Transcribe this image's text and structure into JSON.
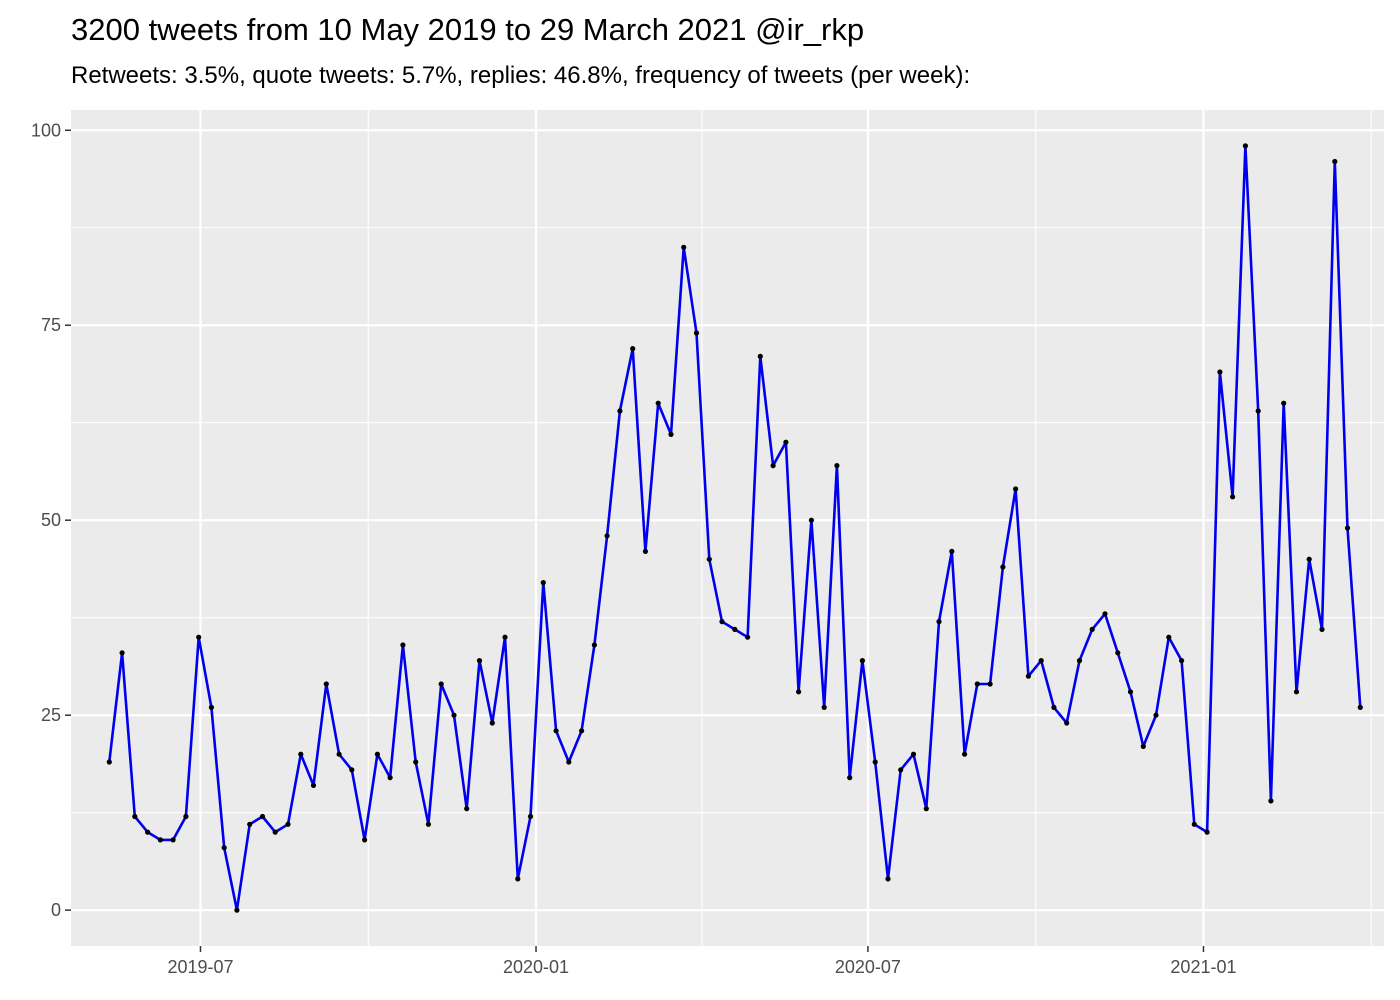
{
  "chart_data": {
    "type": "line",
    "title": "3200 tweets from 10 May 2019 to 29 March 2021 @ir_rkp",
    "subtitle": "Retweets: 3.5%, quote tweets: 5.7%, replies: 46.8%, frequency of tweets (per week):",
    "xlabel": "",
    "ylabel": "",
    "x_start": "2019-05-12",
    "x_step_days": 7,
    "xlim": [
      "2019-04-21",
      "2021-04-10"
    ],
    "x_ticks": [
      {
        "date": "2019-07-01",
        "label": "2019-07"
      },
      {
        "date": "2020-01-01",
        "label": "2020-01"
      },
      {
        "date": "2020-07-01",
        "label": "2020-07"
      },
      {
        "date": "2021-01-01",
        "label": "2021-01"
      }
    ],
    "y_ticks": [
      0,
      25,
      50,
      75,
      100
    ],
    "ylim": [
      -4.6,
      102.6
    ],
    "grid": true,
    "legend": "none",
    "colors": {
      "line": "#0000ee",
      "point": "#000000",
      "panel": "#ebebeb",
      "grid": "#ffffff"
    },
    "series": [
      {
        "values": [
          19,
          33,
          12,
          10,
          9,
          9,
          12,
          35,
          26,
          8,
          0,
          11,
          12,
          10,
          11,
          20,
          16,
          29,
          20,
          18,
          9,
          20,
          17,
          34,
          19,
          11,
          29,
          25,
          13,
          32,
          24,
          35,
          4,
          12,
          42,
          23,
          19,
          23,
          34,
          48,
          64,
          72,
          46,
          65,
          61,
          85,
          74,
          45,
          37,
          36,
          35,
          71,
          57,
          60,
          28,
          50,
          26,
          57,
          17,
          32,
          19,
          4,
          18,
          20,
          13,
          37,
          46,
          20,
          29,
          29,
          44,
          54,
          30,
          32,
          26,
          24,
          32,
          36,
          38,
          33,
          28,
          21,
          25,
          35,
          32,
          11,
          10,
          69,
          53,
          98,
          64,
          14,
          65,
          28,
          45,
          36,
          96,
          49,
          26
        ]
      }
    ]
  }
}
